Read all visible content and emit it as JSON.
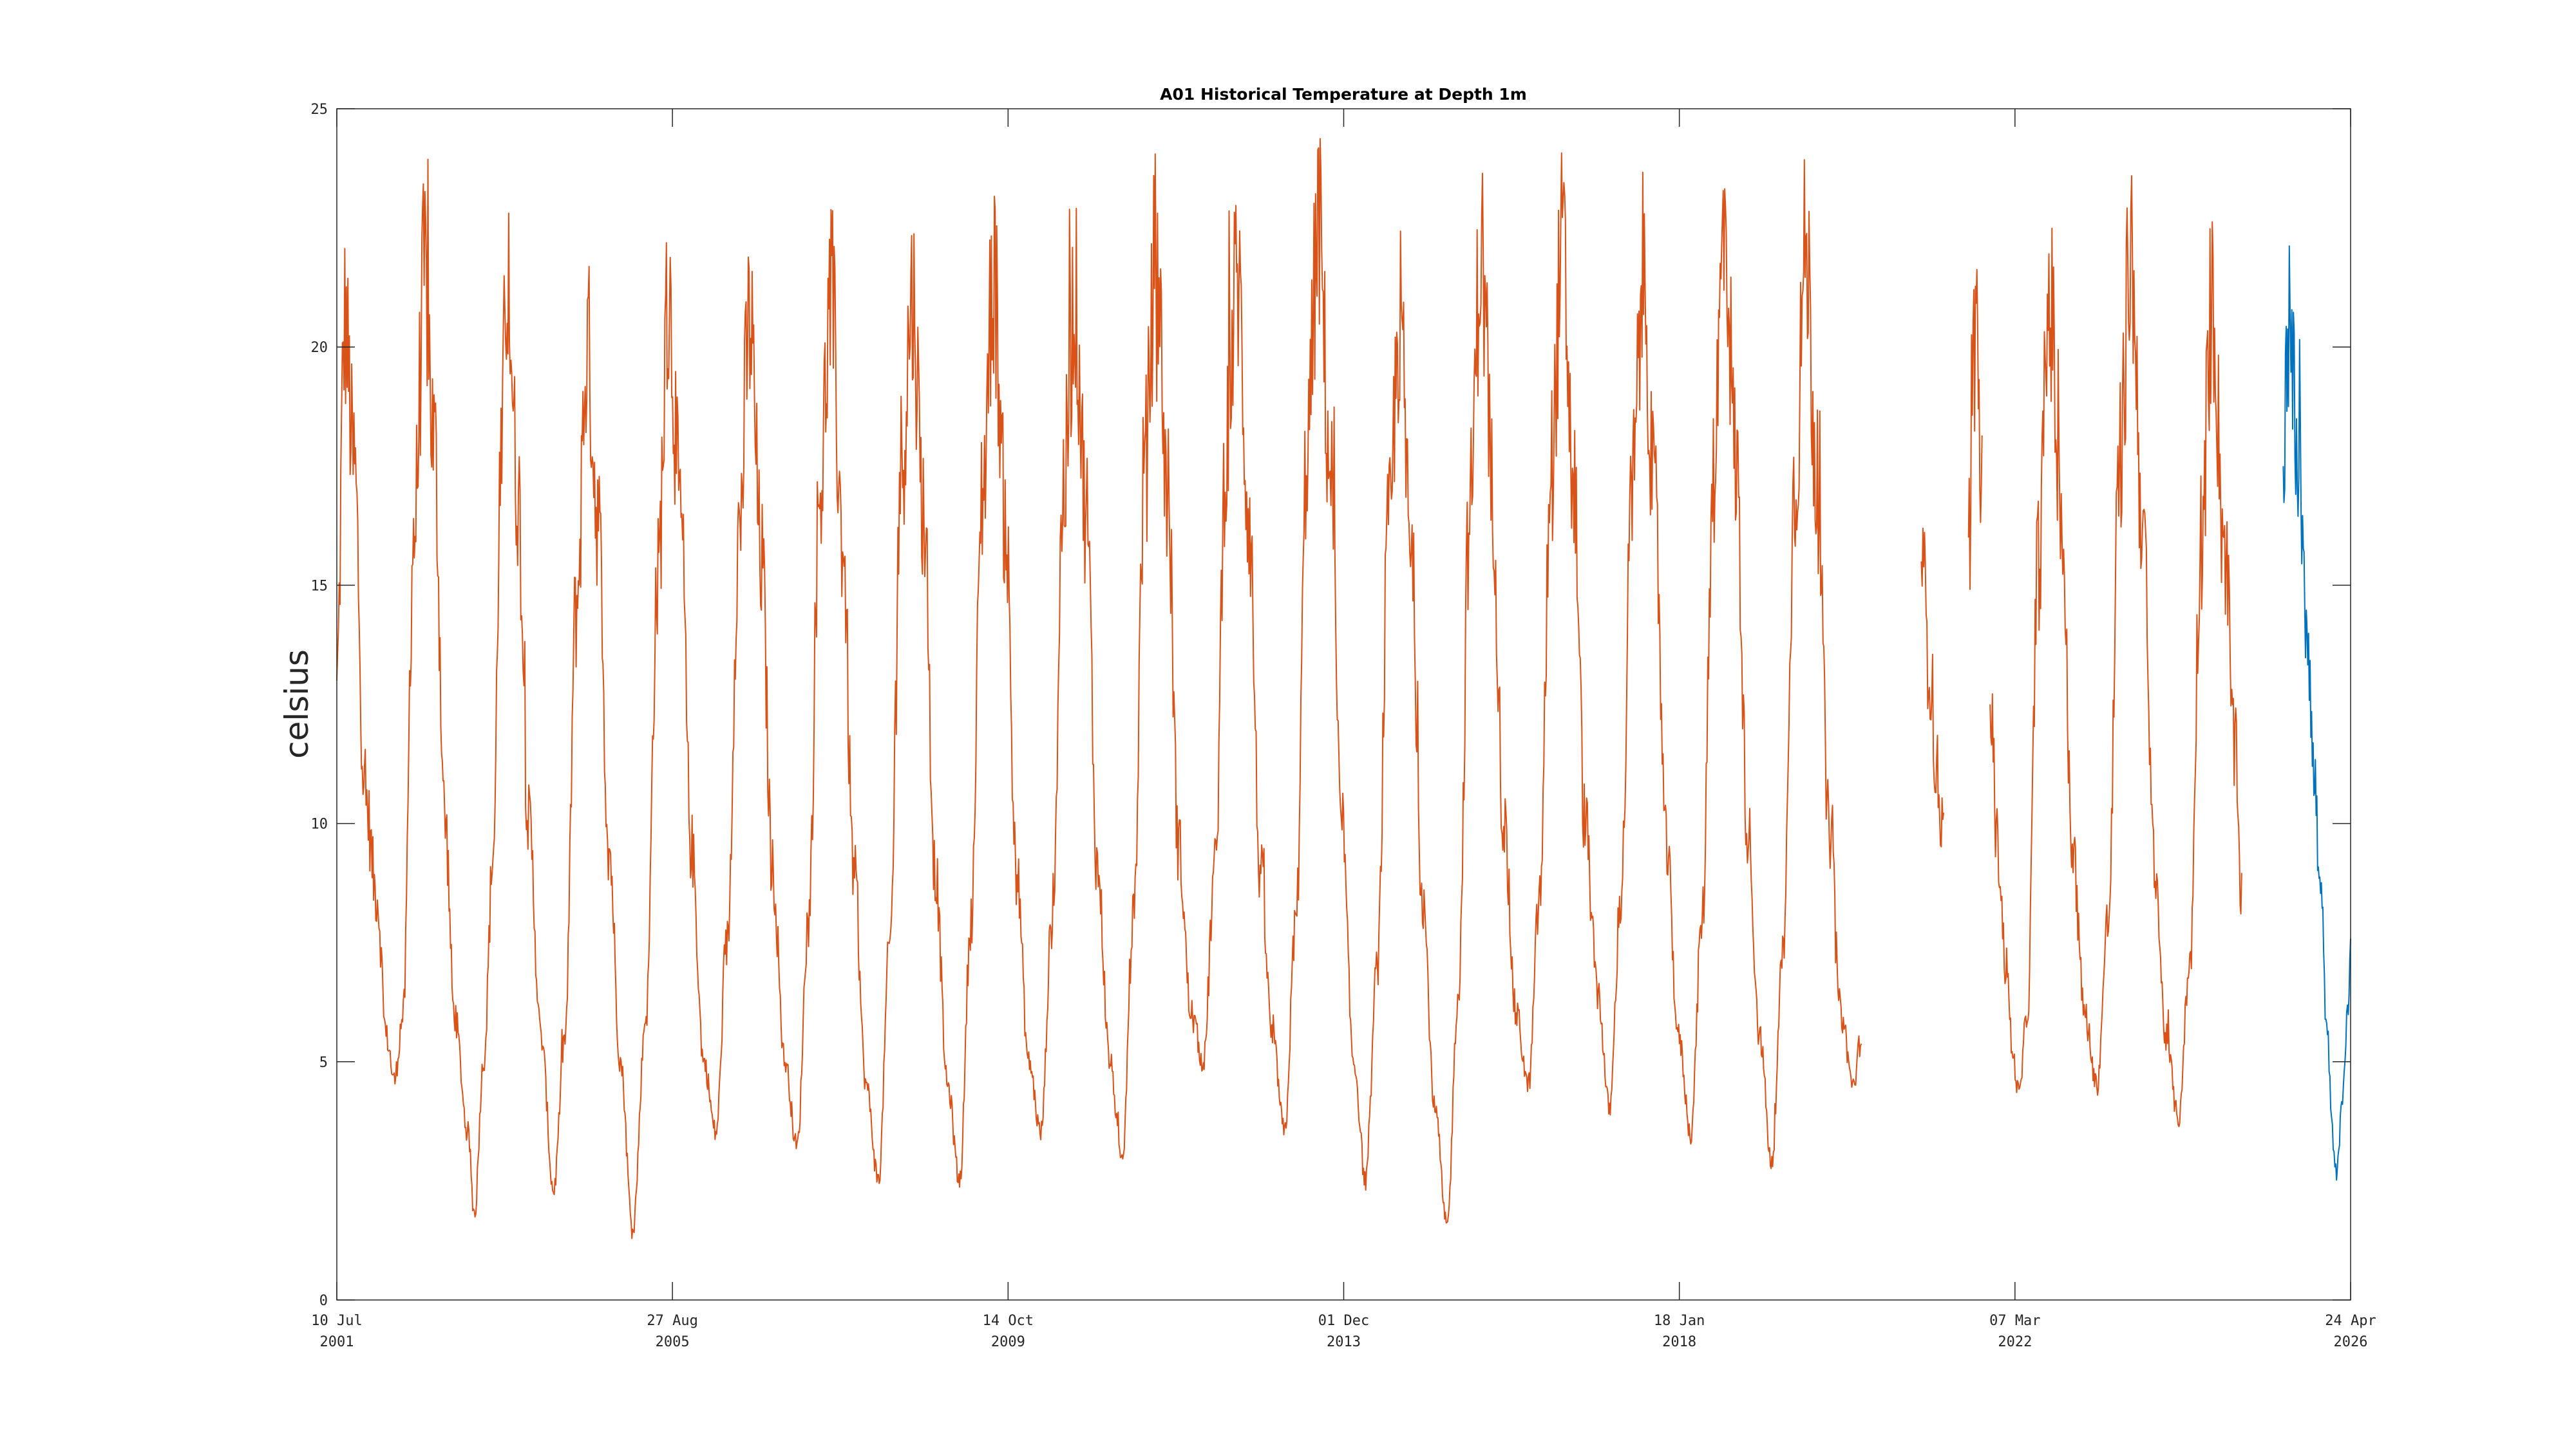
{
  "chart_data": {
    "type": "line",
    "title": "A01 Historical Temperature at Depth 1m",
    "xlabel": "",
    "ylabel": "celsius",
    "xlim": [
      "2001-07-10",
      "2026-04-24"
    ],
    "ylim": [
      0,
      25
    ],
    "grid": false,
    "x_ticks": [
      {
        "date": "2001-07-10",
        "line1": "10 Jul",
        "line2": "2001"
      },
      {
        "date": "2005-08-27",
        "line1": "27 Aug",
        "line2": "2005"
      },
      {
        "date": "2009-10-14",
        "line1": "14 Oct",
        "line2": "2009"
      },
      {
        "date": "2013-12-01",
        "line1": "01 Dec",
        "line2": "2013"
      },
      {
        "date": "2018-01-18",
        "line1": "18 Jan",
        "line2": "2018"
      },
      {
        "date": "2022-03-07",
        "line1": "07 Mar",
        "line2": "2022"
      },
      {
        "date": "2026-04-24",
        "line1": "24 Apr",
        "line2": "2026"
      }
    ],
    "y_ticks": [
      "0",
      "5",
      "10",
      "15",
      "20",
      "25"
    ],
    "series": [
      {
        "color": "#d95319",
        "points": [
          [
            "2001-07-10",
            13.0
          ],
          [
            "2001-08-15",
            20.5
          ],
          [
            "2001-09-25",
            17.5
          ],
          [
            "2001-11-15",
            10.5
          ],
          [
            "2002-01-05",
            8.5
          ],
          [
            "2002-02-20",
            5.5
          ],
          [
            "2002-03-25",
            4.6
          ],
          [
            "2002-05-05",
            6.0
          ],
          [
            "2002-06-20",
            16.0
          ],
          [
            "2002-08-10",
            21.5
          ],
          [
            "2002-09-20",
            18.0
          ],
          [
            "2002-11-10",
            10.0
          ],
          [
            "2002-12-20",
            6.0
          ],
          [
            "2003-02-20",
            3.5
          ],
          [
            "2003-03-20",
            1.8
          ],
          [
            "2003-05-01",
            5.0
          ],
          [
            "2003-06-15",
            9.5
          ],
          [
            "2003-07-15",
            17.0
          ],
          [
            "2003-08-15",
            21.5
          ],
          [
            "2003-10-01",
            17.0
          ],
          [
            "2003-11-20",
            10.0
          ],
          [
            "2004-01-15",
            5.5
          ],
          [
            "2004-03-10",
            2.3
          ],
          [
            "2004-05-01",
            5.5
          ],
          [
            "2004-06-20",
            14.5
          ],
          [
            "2004-08-10",
            20.0
          ],
          [
            "2004-09-25",
            16.5
          ],
          [
            "2004-11-15",
            9.5
          ],
          [
            "2005-01-05",
            5.0
          ],
          [
            "2005-03-01",
            1.5
          ],
          [
            "2005-05-01",
            6.0
          ],
          [
            "2005-06-20",
            15.0
          ],
          [
            "2005-08-10",
            21.0
          ],
          [
            "2005-10-01",
            16.5
          ],
          [
            "2005-11-20",
            9.5
          ],
          [
            "2006-01-15",
            5.0
          ],
          [
            "2006-03-10",
            3.5
          ],
          [
            "2006-05-01",
            7.5
          ],
          [
            "2006-06-20",
            16.0
          ],
          [
            "2006-08-10",
            20.5
          ],
          [
            "2006-10-01",
            15.5
          ],
          [
            "2006-11-20",
            9.0
          ],
          [
            "2007-01-15",
            5.0
          ],
          [
            "2007-03-10",
            3.2
          ],
          [
            "2007-05-01",
            8.0
          ],
          [
            "2007-06-20",
            17.0
          ],
          [
            "2007-08-10",
            21.0
          ],
          [
            "2007-10-01",
            16.0
          ],
          [
            "2007-11-20",
            9.0
          ],
          [
            "2008-01-15",
            4.5
          ],
          [
            "2008-03-10",
            2.5
          ],
          [
            "2008-05-01",
            7.5
          ],
          [
            "2008-06-20",
            17.5
          ],
          [
            "2008-08-10",
            21.0
          ],
          [
            "2008-10-01",
            16.5
          ],
          [
            "2008-11-20",
            9.0
          ],
          [
            "2009-01-15",
            4.5
          ],
          [
            "2009-03-10",
            2.5
          ],
          [
            "2009-05-01",
            8.0
          ],
          [
            "2009-06-20",
            17.0
          ],
          [
            "2009-08-10",
            21.5
          ],
          [
            "2009-10-01",
            16.5
          ],
          [
            "2009-11-20",
            9.0
          ],
          [
            "2010-01-15",
            5.0
          ],
          [
            "2010-03-10",
            3.5
          ],
          [
            "2010-05-01",
            8.0
          ],
          [
            "2010-06-20",
            17.0
          ],
          [
            "2010-08-10",
            21.0
          ],
          [
            "2010-10-01",
            16.5
          ],
          [
            "2010-11-20",
            9.0
          ],
          [
            "2011-01-15",
            5.0
          ],
          [
            "2011-03-10",
            2.8
          ],
          [
            "2011-05-01",
            8.0
          ],
          [
            "2011-06-20",
            17.5
          ],
          [
            "2011-08-10",
            22.0
          ],
          [
            "2011-10-01",
            17.0
          ],
          [
            "2011-11-20",
            9.5
          ],
          [
            "2012-01-15",
            6.0
          ],
          [
            "2012-03-10",
            5.0
          ],
          [
            "2012-05-01",
            9.0
          ],
          [
            "2012-06-20",
            18.0
          ],
          [
            "2012-08-10",
            21.5
          ],
          [
            "2012-10-01",
            16.5
          ],
          [
            "2012-11-20",
            9.0
          ],
          [
            "2013-01-15",
            5.5
          ],
          [
            "2013-03-10",
            3.5
          ],
          [
            "2013-05-01",
            8.0
          ],
          [
            "2013-06-20",
            18.0
          ],
          [
            "2013-08-10",
            22.5
          ],
          [
            "2013-10-01",
            17.5
          ],
          [
            "2013-11-20",
            10.0
          ],
          [
            "2014-01-15",
            5.0
          ],
          [
            "2014-03-10",
            2.5
          ],
          [
            "2014-05-01",
            7.0
          ],
          [
            "2014-06-20",
            16.0
          ],
          [
            "2014-08-10",
            20.5
          ],
          [
            "2014-10-01",
            15.5
          ],
          [
            "2014-11-20",
            8.5
          ],
          [
            "2015-01-15",
            4.0
          ],
          [
            "2015-03-10",
            1.5
          ],
          [
            "2015-05-01",
            6.5
          ],
          [
            "2015-06-20",
            16.5
          ],
          [
            "2015-08-10",
            22.0
          ],
          [
            "2015-10-01",
            17.0
          ],
          [
            "2015-11-20",
            10.0
          ],
          [
            "2016-01-15",
            6.0
          ],
          [
            "2016-03-10",
            4.5
          ],
          [
            "2016-05-01",
            8.5
          ],
          [
            "2016-06-20",
            17.5
          ],
          [
            "2016-08-10",
            22.0
          ],
          [
            "2016-10-01",
            17.0
          ],
          [
            "2016-11-20",
            10.0
          ],
          [
            "2017-01-15",
            6.5
          ],
          [
            "2017-03-10",
            4.0
          ],
          [
            "2017-05-01",
            8.5
          ],
          [
            "2017-06-20",
            17.0
          ],
          [
            "2017-08-10",
            21.5
          ],
          [
            "2017-10-01",
            16.5
          ],
          [
            "2017-11-20",
            9.5
          ],
          [
            "2018-01-15",
            5.5
          ],
          [
            "2018-03-10",
            3.5
          ],
          [
            "2018-05-01",
            8.0
          ],
          [
            "2018-06-20",
            17.5
          ],
          [
            "2018-08-10",
            22.5
          ],
          [
            "2018-10-01",
            17.5
          ],
          [
            "2018-11-20",
            10.0
          ],
          [
            "2019-01-15",
            5.5
          ],
          [
            "2019-03-10",
            2.8
          ],
          [
            "2019-05-01",
            7.5
          ],
          [
            "2019-06-20",
            17.0
          ],
          [
            "2019-08-10",
            22.0
          ],
          [
            "2019-10-01",
            17.0
          ],
          [
            "2019-11-20",
            10.0
          ],
          [
            "2020-01-15",
            6.0
          ],
          [
            "2020-03-10",
            4.5
          ],
          [
            "2020-04-15",
            5.5
          ]
        ]
      },
      {
        "color": "#d95319",
        "points": [
          [
            "2021-01-10",
            15.5
          ],
          [
            "2021-02-15",
            13.5
          ],
          [
            "2021-03-20",
            11.0
          ],
          [
            "2021-04-20",
            9.8
          ]
        ]
      },
      {
        "color": "#d95319",
        "points": [
          [
            "2021-08-10",
            16.0
          ],
          [
            "2021-09-10",
            20.0
          ],
          [
            "2021-10-10",
            17.0
          ]
        ]
      },
      {
        "color": "#d95319",
        "points": [
          [
            "2021-11-15",
            12.5
          ],
          [
            "2021-12-20",
            9.5
          ],
          [
            "2022-01-25",
            7.0
          ],
          [
            "2022-03-01",
            5.0
          ],
          [
            "2022-03-25",
            4.3
          ],
          [
            "2022-05-01",
            6.0
          ],
          [
            "2022-06-20",
            15.5
          ],
          [
            "2022-08-10",
            21.0
          ],
          [
            "2022-10-01",
            16.5
          ],
          [
            "2022-11-20",
            9.5
          ],
          [
            "2023-01-15",
            6.0
          ],
          [
            "2023-03-10",
            4.5
          ],
          [
            "2023-05-01",
            8.0
          ],
          [
            "2023-06-20",
            17.5
          ],
          [
            "2023-08-10",
            22.0
          ],
          [
            "2023-10-01",
            16.5
          ],
          [
            "2023-11-20",
            9.5
          ],
          [
            "2024-01-15",
            5.5
          ],
          [
            "2024-03-10",
            3.8
          ],
          [
            "2024-05-01",
            7.0
          ],
          [
            "2024-06-20",
            16.0
          ],
          [
            "2024-08-10",
            21.0
          ],
          [
            "2024-10-01",
            16.0
          ],
          [
            "2024-11-20",
            11.5
          ],
          [
            "2024-12-20",
            8.5
          ]
        ]
      },
      {
        "color": "#0072bd",
        "points": [
          [
            "2025-06-25",
            17.5
          ],
          [
            "2025-07-15",
            20.5
          ],
          [
            "2025-08-10",
            19.0
          ],
          [
            "2025-09-10",
            17.0
          ],
          [
            "2025-10-10",
            14.5
          ],
          [
            "2025-11-10",
            11.0
          ],
          [
            "2025-12-10",
            8.5
          ],
          [
            "2026-01-10",
            5.5
          ],
          [
            "2026-02-01",
            3.5
          ],
          [
            "2026-02-20",
            2.5
          ],
          [
            "2026-03-15",
            4.0
          ],
          [
            "2026-04-10",
            6.0
          ],
          [
            "2026-04-24",
            7.5
          ]
        ]
      }
    ]
  }
}
